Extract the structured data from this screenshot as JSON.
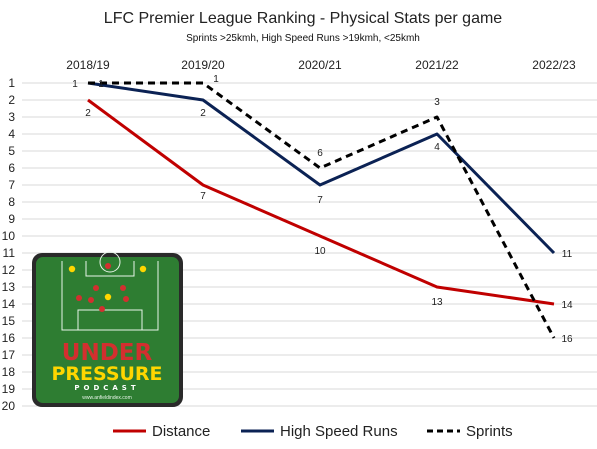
{
  "colors": {
    "distance": "#c00000",
    "high_speed": "#0b2254",
    "sprints": "#000000",
    "gridline": "#d9d9d9",
    "logo_green": "#2e7d32",
    "logo_red": "#d32f2f",
    "logo_yellow": "#ffd600"
  },
  "logo": {
    "icon": "under-pressure-podcast-logo",
    "line1": "UNDER",
    "line2": "PRESSURE",
    "line3": "PODCAST",
    "url": "www.anfieldindex.com"
  },
  "chart_data": {
    "type": "line",
    "title": "LFC Premier League Ranking - Physical Stats per game",
    "subtitle": "Sprints >25kmh, High Speed Runs >19kmh, <25kmh",
    "categories": [
      "2018/19",
      "2019/20",
      "2020/21",
      "2021/22",
      "2022/23"
    ],
    "ylim": [
      1,
      20
    ],
    "y_ticks": [
      1,
      2,
      3,
      4,
      5,
      6,
      7,
      8,
      9,
      10,
      11,
      12,
      13,
      14,
      15,
      16,
      17,
      18,
      19,
      20
    ],
    "y_inverted": true,
    "x_axis_position": "top",
    "grid": true,
    "legend_position": "bottom",
    "series": [
      {
        "name": "Distance",
        "values": [
          2,
          7,
          10,
          13,
          14
        ],
        "style": "solid",
        "color": "#c00000"
      },
      {
        "name": "High Speed Runs",
        "values": [
          1,
          2,
          7,
          4,
          11
        ],
        "style": "solid",
        "color": "#0b2254"
      },
      {
        "name": "Sprints",
        "values": [
          1,
          1,
          6,
          3,
          16
        ],
        "style": "dashed",
        "color": "#000000"
      }
    ]
  }
}
